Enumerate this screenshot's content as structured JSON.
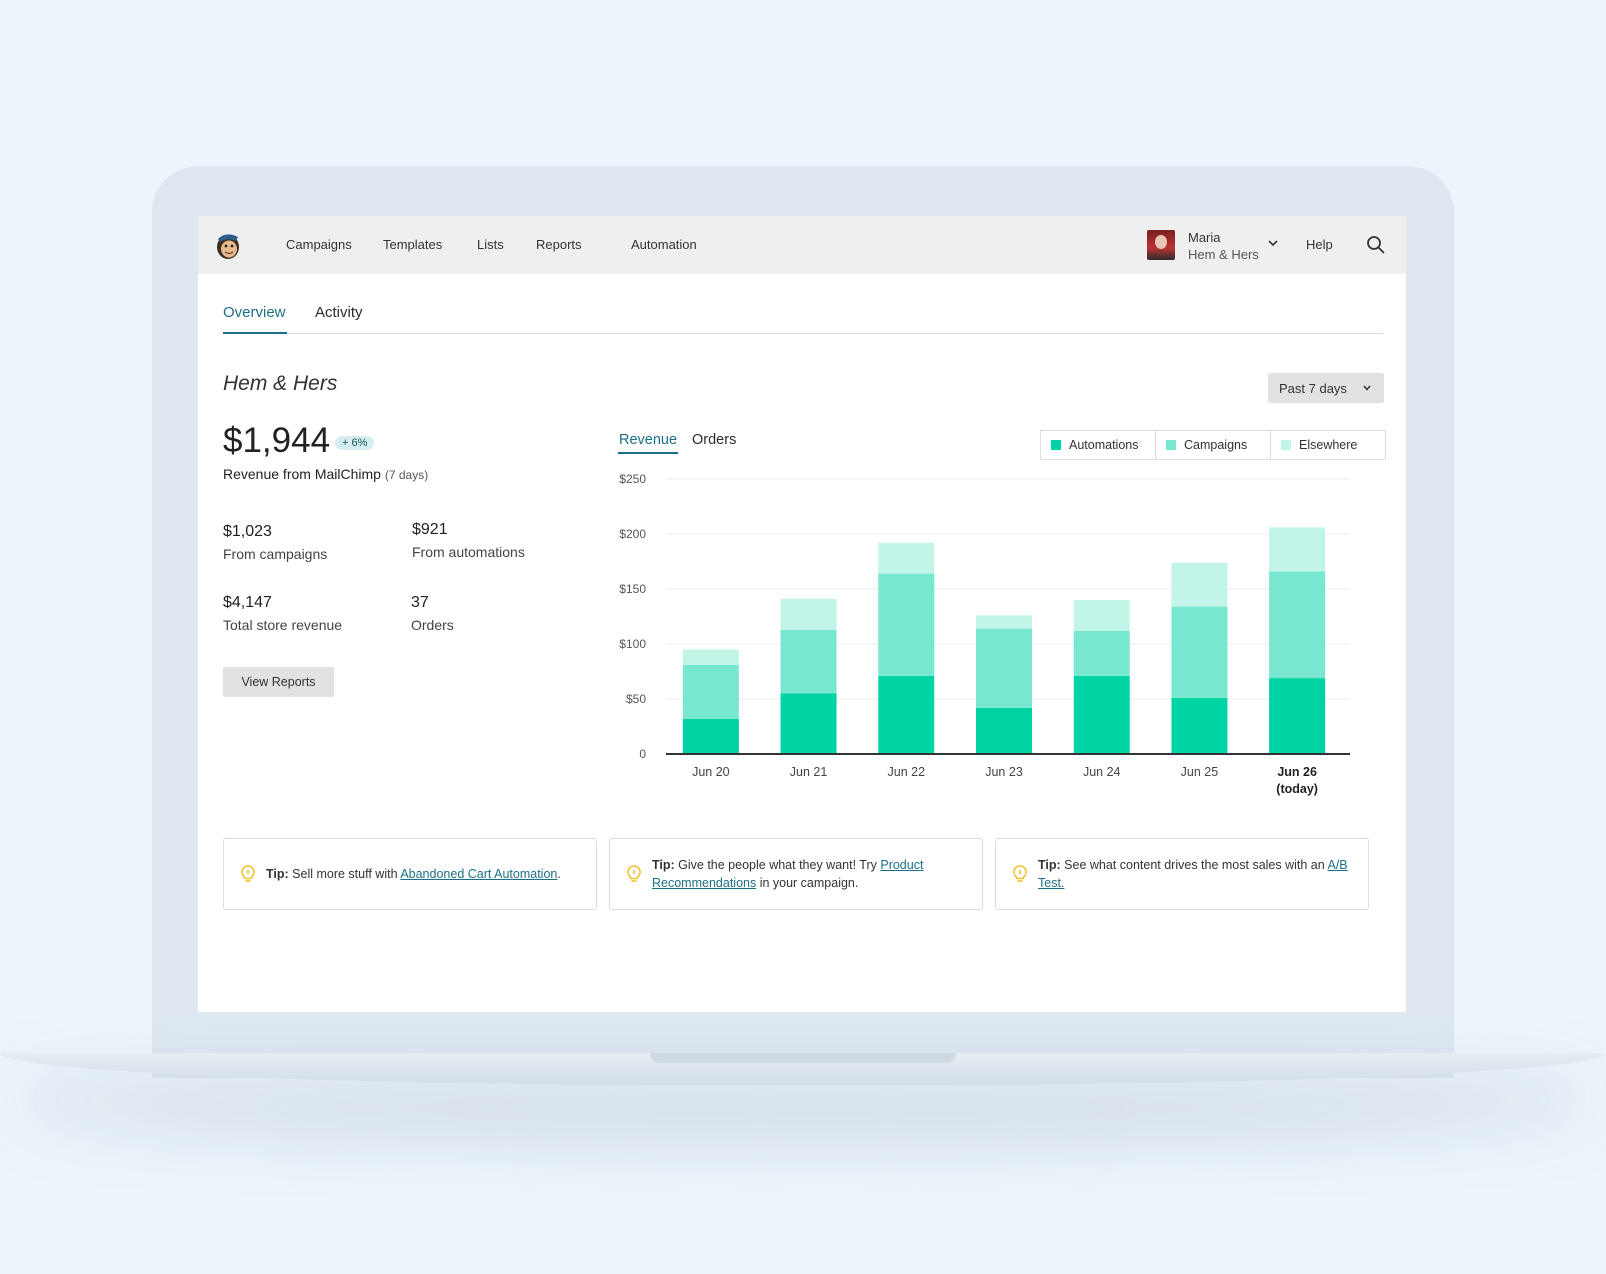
{
  "nav": {
    "items": [
      "Campaigns",
      "Templates",
      "Lists",
      "Reports",
      "Automation"
    ],
    "user_name": "Maria",
    "user_org": "Hem & Hers",
    "help": "Help"
  },
  "tabs": [
    "Overview",
    "Activity"
  ],
  "store_title": "Hem & Hers",
  "range_select": "Past 7 days",
  "summary": {
    "revenue": "$1,944",
    "change": "+ 6%",
    "revenue_label": "Revenue from MailChimp",
    "revenue_period": "(7 days)",
    "stats": [
      {
        "value": "$1,023",
        "label": "From campaigns"
      },
      {
        "value": "$921",
        "label": "From automations"
      },
      {
        "value": "$4,147",
        "label": "Total store revenue"
      },
      {
        "value": "37",
        "label": "Orders"
      }
    ],
    "view_reports": "View Reports"
  },
  "chart_tabs": [
    "Revenue",
    "Orders"
  ],
  "colors": {
    "automations": "#00d3a4",
    "campaigns": "#77e8cf",
    "elsewhere": "#c3f4e8",
    "accent": "#1d6f87"
  },
  "chart_data": {
    "type": "bar",
    "stacked": true,
    "categories": [
      "Jun 20",
      "Jun 21",
      "Jun 22",
      "Jun 23",
      "Jun 24",
      "Jun 25",
      "Jun 26"
    ],
    "category_sublabels": [
      "",
      "",
      "",
      "",
      "",
      "",
      "(today)"
    ],
    "series": [
      {
        "name": "Automations",
        "values": [
          32,
          55,
          71,
          42,
          71,
          51,
          69
        ]
      },
      {
        "name": "Campaigns",
        "values": [
          49,
          58,
          93,
          72,
          41,
          83,
          97
        ]
      },
      {
        "name": "Elsewhere",
        "values": [
          14,
          28,
          28,
          12,
          28,
          40,
          40
        ]
      }
    ],
    "ylim": [
      0,
      250
    ],
    "yticks": [
      "0",
      "$50",
      "$100",
      "$150",
      "$200",
      "$250"
    ],
    "ytick_values": [
      0,
      50,
      100,
      150,
      200,
      250
    ],
    "grid": true,
    "legend": "top-right"
  },
  "tips": [
    {
      "prefix": "Tip:",
      "text": " Sell more stuff with ",
      "link": "Abandoned Cart Automation",
      "suffix": "."
    },
    {
      "prefix": "Tip:",
      "text": " Give the people what they want! Try ",
      "link": "Product Recommendations",
      "suffix": " in your campaign."
    },
    {
      "prefix": "Tip:",
      "text": " See what content drives the most sales with an ",
      "link": "A/B Test.",
      "suffix": ""
    }
  ]
}
